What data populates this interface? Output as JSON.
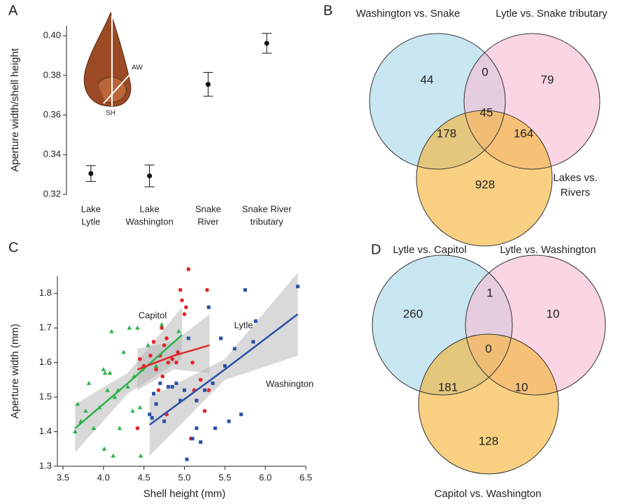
{
  "chart_data": [
    {
      "panel": "A",
      "type": "errorbar",
      "categories": [
        [
          "Lake",
          "Lytle"
        ],
        [
          "Lake",
          "Washington"
        ],
        [
          "Snake",
          "River"
        ],
        [
          "Snake River",
          "tributary"
        ]
      ],
      "values": [
        0.3305,
        0.3293,
        0.3755,
        0.3962
      ],
      "errors": [
        0.004,
        0.0055,
        0.006,
        0.005
      ],
      "y_label": "Aperture width/shell height",
      "ylim": [
        0.32,
        0.405
      ],
      "yticks": [
        0.32,
        0.34,
        0.36,
        0.38,
        {
          "value": 0.4,
          "label": "0.40"
        }
      ],
      "color": "#111111",
      "annotations": [
        "AW",
        "SH"
      ]
    },
    {
      "panel": "B",
      "type": "venn",
      "sets": [
        {
          "label": [
            "Washington vs. Snake"
          ],
          "color": "#a8d8ea"
        },
        {
          "label": [
            "Lytle vs. Snake tributary"
          ],
          "color": "#f7bcd2"
        },
        {
          "label": [
            "Lakes vs.",
            "Rivers"
          ],
          "color": "#f5b335"
        }
      ],
      "values": {
        "A": 44,
        "AB": 0,
        "B": 79,
        "ABC": 45,
        "AC": 178,
        "BC": 164,
        "C": 928
      }
    },
    {
      "panel": "C",
      "type": "scatter",
      "x_label": "Shell height (mm)",
      "y_label": "Aperture width (mm)",
      "xlim": [
        3.5,
        6.5
      ],
      "ylim": [
        1.3,
        1.85
      ],
      "xticks": [
        3.5,
        {
          "value": 4,
          "label": "4.0"
        },
        4.5,
        {
          "value": 5,
          "label": "5.0"
        },
        5.5,
        {
          "value": 6,
          "label": "6.0"
        },
        6.5
      ],
      "yticks": [
        1.3,
        1.4,
        1.5,
        1.6,
        1.7,
        1.8
      ],
      "band_color": "#b4b4b4",
      "series": [
        {
          "name": "Capitol",
          "color": "#2db34a",
          "marker": "triangle",
          "x": [
            3.65,
            3.68,
            3.72,
            3.78,
            3.82,
            3.88,
            3.95,
            4.0,
            4.02,
            4.05,
            4.01,
            4.08,
            4.1,
            4.12,
            4.14,
            4.18,
            4.2,
            4.25,
            4.3,
            4.32,
            4.36,
            4.38,
            4.42,
            4.46,
            4.48,
            4.55,
            4.65,
            4.72,
            4.93,
            4.45
          ],
          "values": [
            1.4,
            1.48,
            1.43,
            1.46,
            1.54,
            1.41,
            1.47,
            1.58,
            1.57,
            1.52,
            1.35,
            1.57,
            1.69,
            1.33,
            1.5,
            1.52,
            1.41,
            1.63,
            1.53,
            1.7,
            1.46,
            1.56,
            1.7,
            1.33,
            1.58,
            1.65,
            1.59,
            1.71,
            1.69,
            1.47
          ],
          "fit": {
            "x": [
              3.65,
              4.3,
              4.97
            ],
            "y": [
              1.41,
              1.54,
              1.68
            ],
            "lower": [
              1.34,
              1.51,
              1.61
            ],
            "upper": [
              1.48,
              1.57,
              1.76
            ]
          }
        },
        {
          "name": "Lytle",
          "color": "#e0262b",
          "marker": "circle",
          "x": [
            4.42,
            4.45,
            4.5,
            4.58,
            4.62,
            4.65,
            4.68,
            4.7,
            4.72,
            4.73,
            4.75,
            4.78,
            4.8,
            4.85,
            4.9,
            4.92,
            4.95,
            4.97,
            5.0,
            5.02,
            5.05,
            5.08,
            5.1,
            5.12,
            5.2,
            5.25,
            5.28,
            5.3,
            4.78,
            5.15
          ],
          "values": [
            1.41,
            1.61,
            1.59,
            1.62,
            1.66,
            1.58,
            1.52,
            1.62,
            1.7,
            1.56,
            1.65,
            1.67,
            1.6,
            1.61,
            1.6,
            1.63,
            1.81,
            1.78,
            1.74,
            1.76,
            1.87,
            1.38,
            1.6,
            1.52,
            1.55,
            1.46,
            1.81,
            1.52,
            1.45,
            1.49
          ],
          "fit": {
            "x": [
              4.42,
              4.87,
              5.31
            ],
            "y": [
              1.58,
              1.62,
              1.65
            ],
            "lower": [
              1.52,
              1.58,
              1.57
            ],
            "upper": [
              1.64,
              1.66,
              1.74
            ]
          }
        },
        {
          "name": "Washington",
          "color": "#2a4fa8",
          "marker": "square",
          "x": [
            4.57,
            4.6,
            4.62,
            4.65,
            4.7,
            4.75,
            4.8,
            4.85,
            4.95,
            5.0,
            5.03,
            5.05,
            5.1,
            5.15,
            5.2,
            5.25,
            5.3,
            5.35,
            5.38,
            5.45,
            5.5,
            5.55,
            5.62,
            5.7,
            5.75,
            5.85,
            5.88,
            6.4,
            5.15,
            4.9
          ],
          "values": [
            1.45,
            1.44,
            1.51,
            1.48,
            1.54,
            1.43,
            1.53,
            1.53,
            1.49,
            1.52,
            1.32,
            1.67,
            1.38,
            1.41,
            1.37,
            1.52,
            1.76,
            1.54,
            1.41,
            1.67,
            1.59,
            1.43,
            1.64,
            1.45,
            1.81,
            1.66,
            1.72,
            1.82,
            1.49,
            1.54
          ],
          "fit": {
            "x": [
              4.57,
              5.5,
              6.4
            ],
            "y": [
              1.42,
              1.58,
              1.74
            ],
            "lower": [
              1.33,
              1.55,
              1.62
            ],
            "upper": [
              1.5,
              1.61,
              1.86
            ]
          }
        }
      ]
    },
    {
      "panel": "D",
      "type": "venn",
      "sets": [
        {
          "label": [
            "Lytle vs. Capitol"
          ],
          "color": "#a8d8ea"
        },
        {
          "label": [
            "Lytle vs. Washington"
          ],
          "color": "#f7bcd2"
        },
        {
          "label": [
            "Capitol vs. Washington"
          ],
          "color": "#f5b335"
        }
      ],
      "values": {
        "A": 260,
        "AB": 1,
        "B": 10,
        "ABC": 0,
        "AC": 181,
        "BC": 10,
        "C": 128
      }
    }
  ]
}
